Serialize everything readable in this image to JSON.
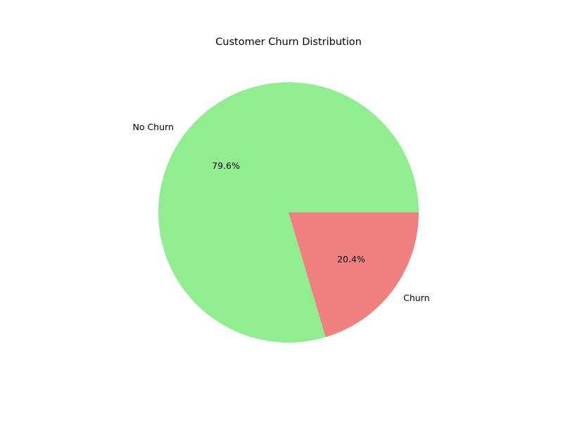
{
  "chart_data": {
    "type": "pie",
    "title": "Customer Churn Distribution",
    "labels": [
      "No Churn",
      "Churn"
    ],
    "values": [
      79.6,
      20.4
    ],
    "percent_labels": [
      "79.6%",
      "20.4%"
    ],
    "colors": [
      "#90ee90",
      "#f08080"
    ],
    "start_angle_deg": 0,
    "direction": "counterclockwise"
  }
}
